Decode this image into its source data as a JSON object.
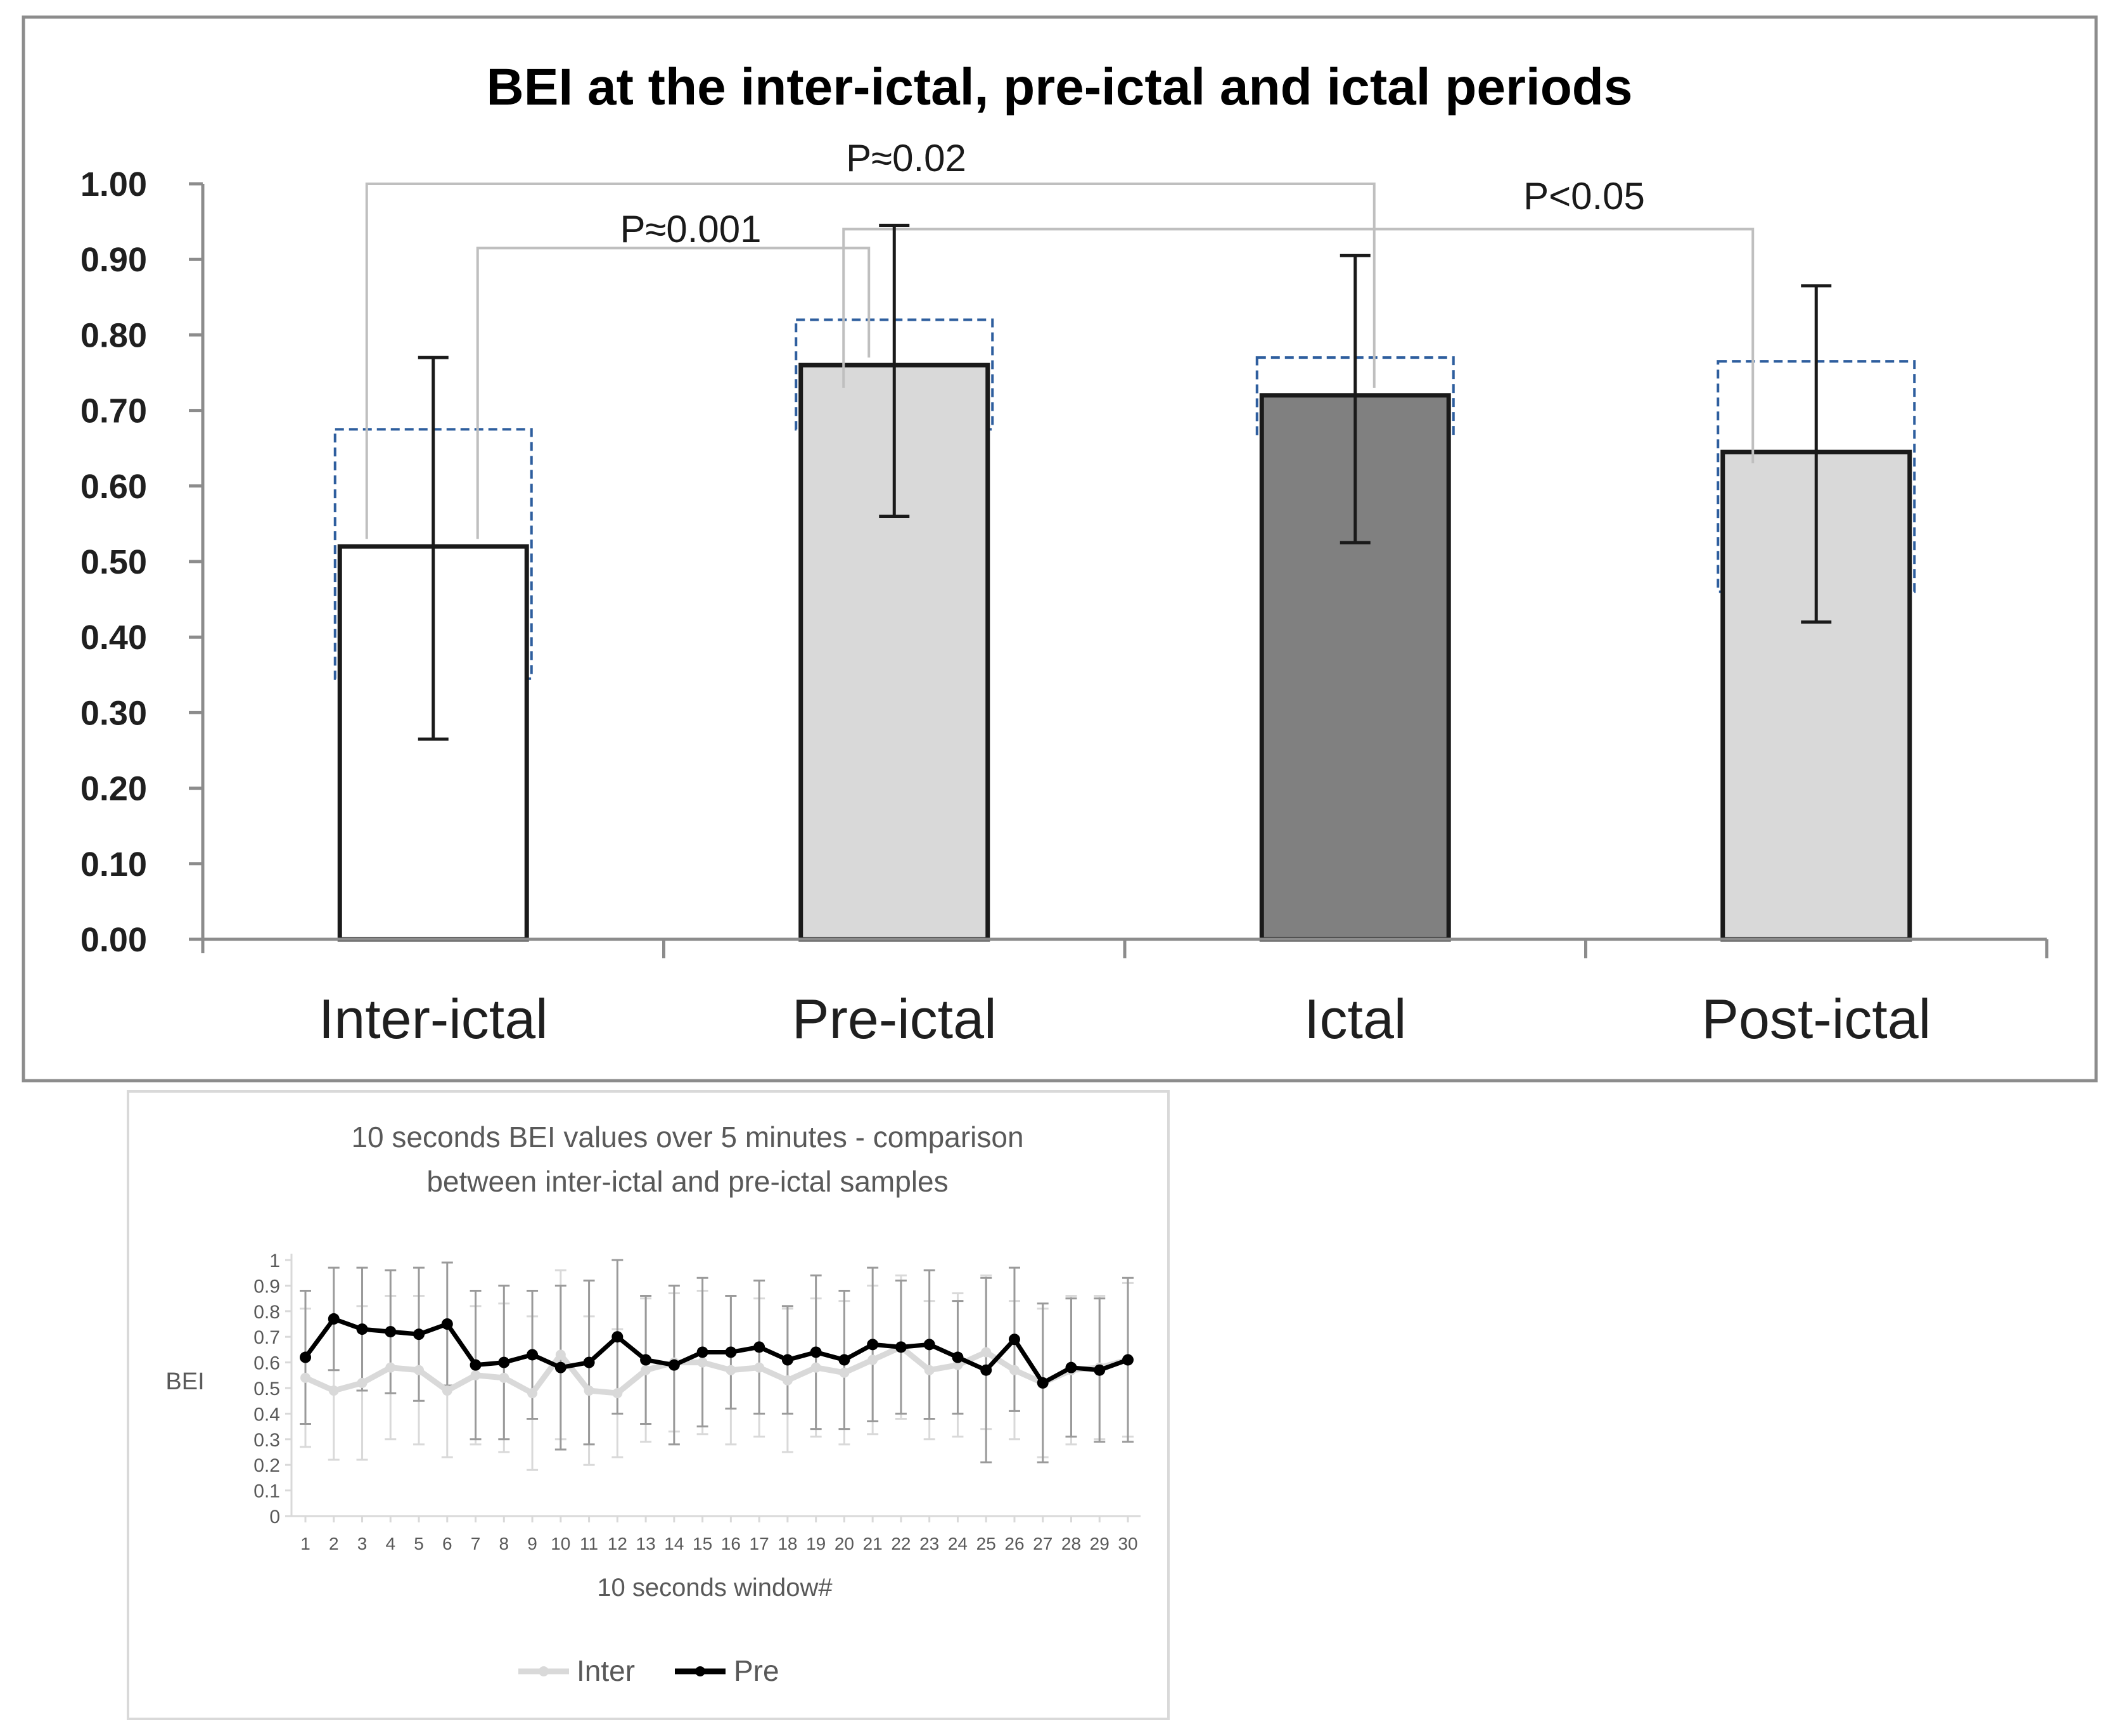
{
  "chart_data": [
    {
      "type": "bar",
      "title": "BEI at the inter-ictal, pre-ictal and ictal periods",
      "categories": [
        "Inter-ictal",
        "Pre-ictal",
        "Ictal",
        "Post-ictal"
      ],
      "values": [
        0.52,
        0.76,
        0.72,
        0.645
      ],
      "error_low": [
        0.265,
        0.56,
        0.525,
        0.42
      ],
      "error_high": [
        0.77,
        0.945,
        0.905,
        0.865
      ],
      "box_low": [
        0.345,
        0.675,
        0.665,
        0.46
      ],
      "box_high": [
        0.675,
        0.82,
        0.77,
        0.765
      ],
      "bar_colors": [
        "#ffffff",
        "#d9d9d9",
        "#808080",
        "#d9d9d9"
      ],
      "ylim": [
        0,
        1.0
      ],
      "yticks": [
        "0.00",
        "0.10",
        "0.20",
        "0.30",
        "0.40",
        "0.50",
        "0.60",
        "0.70",
        "0.80",
        "0.90",
        "1.00"
      ],
      "xlabel": "",
      "ylabel": "",
      "significance": [
        {
          "label": "P≈0.001",
          "from": 0,
          "to": 1,
          "from_y": 0.53,
          "to_y": 0.77,
          "level": 0.915
        },
        {
          "label": "P≈0.02",
          "from": 0,
          "to": 2,
          "from_y": 0.53,
          "to_y": 0.73,
          "level": 1.0
        },
        {
          "label": "P<0.05",
          "from": 1,
          "to": 3,
          "from_y": 0.73,
          "to_y": 0.63,
          "level": 0.94
        }
      ]
    },
    {
      "type": "line",
      "title_lines": [
        "10 seconds BEI values over 5 minutes - comparison",
        "between inter-ictal and pre-ictal samples"
      ],
      "xlabel": "10 seconds window#",
      "ylabel": "BEI",
      "x": [
        "1",
        "2",
        "3",
        "4",
        "5",
        "6",
        "7",
        "8",
        "9",
        "10",
        "11",
        "12",
        "13",
        "14",
        "15",
        "16",
        "17",
        "18",
        "19",
        "20",
        "21",
        "22",
        "23",
        "24",
        "25",
        "26",
        "27",
        "28",
        "29",
        "30"
      ],
      "ylim": [
        0,
        1
      ],
      "yticks": [
        "0",
        "0.1",
        "0.2",
        "0.3",
        "0.4",
        "0.5",
        "0.6",
        "0.7",
        "0.8",
        "0.9",
        "1"
      ],
      "series": [
        {
          "name": "Inter",
          "color": "#d9d9d9",
          "values": [
            0.54,
            0.49,
            0.52,
            0.58,
            0.57,
            0.49,
            0.55,
            0.54,
            0.48,
            0.63,
            0.49,
            0.48,
            0.57,
            0.6,
            0.6,
            0.57,
            0.58,
            0.53,
            0.58,
            0.56,
            0.61,
            0.66,
            0.57,
            0.59,
            0.64,
            0.57,
            0.52,
            0.57,
            0.58,
            0.61
          ],
          "err": [
            0.27,
            0.27,
            0.3,
            0.28,
            0.29,
            0.26,
            0.27,
            0.29,
            0.3,
            0.33,
            0.29,
            0.25,
            0.28,
            0.27,
            0.28,
            0.29,
            0.27,
            0.28,
            0.27,
            0.28,
            0.29,
            0.28,
            0.27,
            0.28,
            0.3,
            0.27,
            0.29,
            0.29,
            0.28,
            0.3
          ]
        },
        {
          "name": "Pre",
          "color": "#000000",
          "values": [
            0.62,
            0.77,
            0.73,
            0.72,
            0.71,
            0.75,
            0.59,
            0.6,
            0.63,
            0.58,
            0.6,
            0.7,
            0.61,
            0.59,
            0.64,
            0.64,
            0.66,
            0.61,
            0.64,
            0.61,
            0.67,
            0.66,
            0.67,
            0.62,
            0.57,
            0.69,
            0.52,
            0.58,
            0.57,
            0.61
          ],
          "err": [
            0.26,
            0.2,
            0.24,
            0.24,
            0.26,
            0.24,
            0.29,
            0.3,
            0.25,
            0.32,
            0.32,
            0.3,
            0.25,
            0.31,
            0.29,
            0.22,
            0.26,
            0.21,
            0.3,
            0.27,
            0.3,
            0.26,
            0.29,
            0.22,
            0.36,
            0.28,
            0.31,
            0.27,
            0.28,
            0.32
          ]
        }
      ]
    }
  ]
}
